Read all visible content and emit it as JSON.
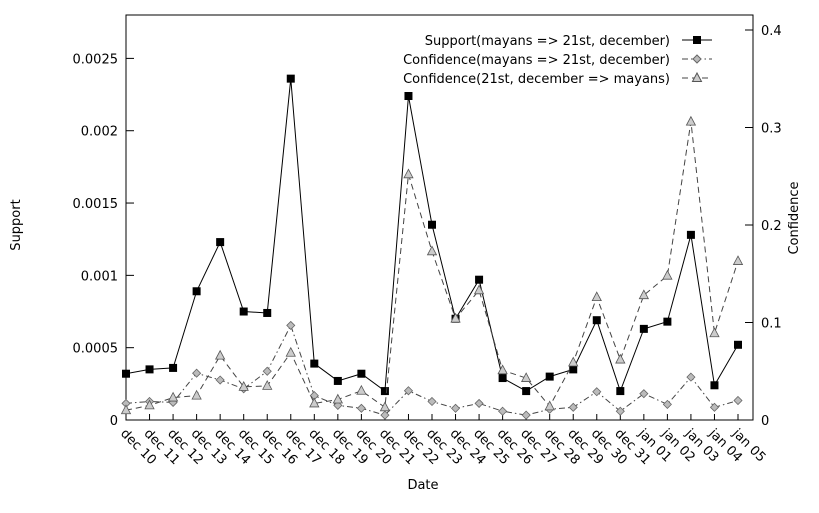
{
  "chart_data": {
    "type": "line",
    "xlabel": "Date",
    "ylabel_left": "Support",
    "ylabel_right": "Confidence",
    "ylim_left": [
      0,
      0.0028
    ],
    "ylim_right": [
      0,
      0.4
    ],
    "yticks_left": [
      "0",
      "0.0005",
      "0.001",
      "0.0015",
      "0.002",
      "0.0025"
    ],
    "yticks_right": [
      "0",
      "0.1",
      "0.2",
      "0.3",
      "0.4"
    ],
    "grid": false,
    "legend_position": "top-right",
    "categories": [
      "dec 10",
      "dec 11",
      "dec 12",
      "dec 13",
      "dec 14",
      "dec 15",
      "dec 16",
      "dec 17",
      "dec 18",
      "dec 19",
      "dec 20",
      "dec 21",
      "dec 22",
      "dec 23",
      "dec 24",
      "dec 25",
      "dec 26",
      "dec 27",
      "dec 28",
      "dec 29",
      "dec 30",
      "dec 31",
      "jan 01",
      "jan 02",
      "jan 03",
      "jan 04",
      "jan 05"
    ],
    "series": [
      {
        "name": "Support(mayans => 21st, december)",
        "axis": "left",
        "marker": "square-filled",
        "line": "solid",
        "values": [
          0.00032,
          0.00035,
          0.00036,
          0.00089,
          0.00123,
          0.00075,
          0.00074,
          0.00236,
          0.00039,
          0.00027,
          0.00032,
          0.0002,
          0.00224,
          0.00135,
          0.0007,
          0.00097,
          0.00029,
          0.0002,
          0.0003,
          0.00035,
          0.00069,
          0.0002,
          0.00063,
          0.00068,
          0.00128,
          0.00024,
          0.00052
        ]
      },
      {
        "name": "Confidence(mayans => 21st, december)",
        "axis": "right",
        "marker": "diamond",
        "line": "dash-dot",
        "values": [
          0.017,
          0.019,
          0.018,
          0.048,
          0.041,
          0.032,
          0.05,
          0.097,
          0.025,
          0.015,
          0.012,
          0.005,
          0.03,
          0.019,
          0.012,
          0.017,
          0.009,
          0.005,
          0.011,
          0.013,
          0.029,
          0.009,
          0.027,
          0.016,
          0.044,
          0.013,
          0.02
        ]
      },
      {
        "name": "Confidence(21st, december => mayans)",
        "axis": "right",
        "marker": "triangle",
        "line": "dashed",
        "values": [
          0.01,
          0.015,
          0.023,
          0.025,
          0.066,
          0.034,
          0.035,
          0.069,
          0.017,
          0.021,
          0.03,
          0.013,
          0.252,
          0.173,
          0.104,
          0.133,
          0.051,
          0.043,
          0.014,
          0.059,
          0.126,
          0.062,
          0.128,
          0.148,
          0.306,
          0.089,
          0.163
        ]
      }
    ]
  }
}
